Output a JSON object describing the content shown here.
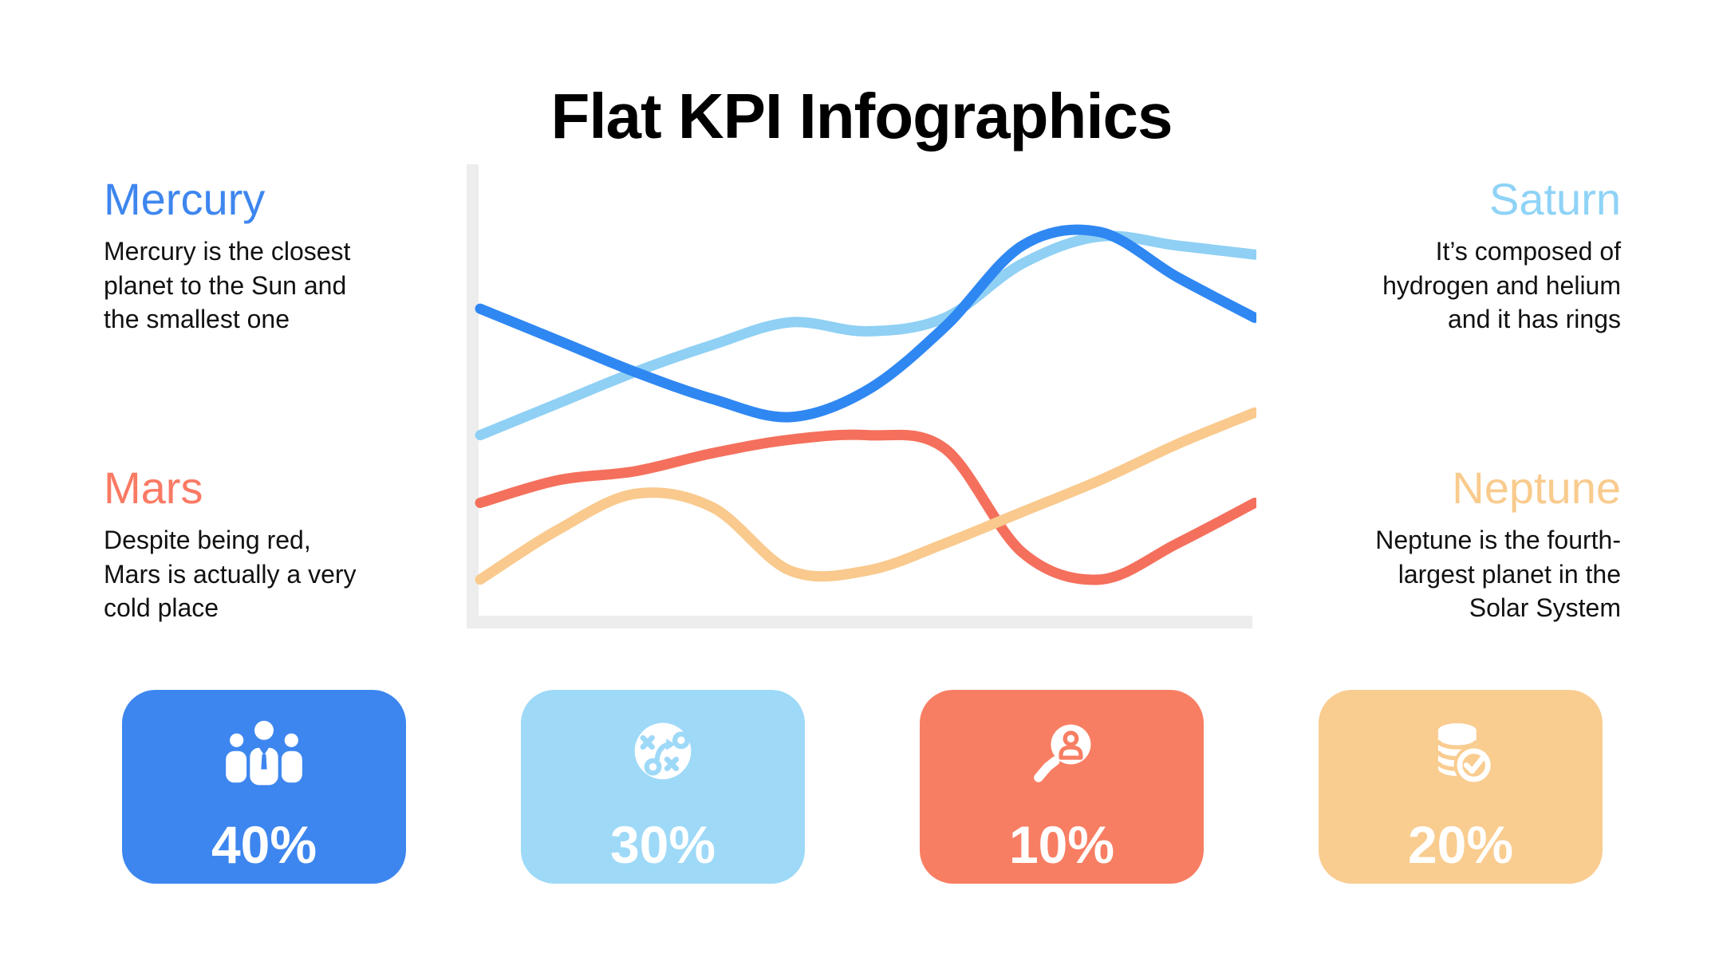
{
  "title": "Flat KPI Infographics",
  "notes": [
    {
      "heading": "Mercury",
      "color": "#3e86ef",
      "body": "Mercury is the closest\nplanet to the Sun and\nthe smallest one"
    },
    {
      "heading": "Mars",
      "color": "#fa7a64",
      "body": "Despite being red,\nMars is actually a very\ncold place"
    },
    {
      "heading": "Saturn",
      "color": "#8fd3f7",
      "body": "It’s composed of\nhydrogen and helium\nand it has rings"
    },
    {
      "heading": "Neptune",
      "color": "#f9cb8d",
      "body": "Neptune is the fourth-\nlargest planet in the\nSolar System"
    }
  ],
  "cards": [
    {
      "value": "40%",
      "color": "#3d86ef",
      "icon": "team-icon"
    },
    {
      "value": "30%",
      "color": "#9ed9f8",
      "icon": "strategy-icon"
    },
    {
      "value": "10%",
      "color": "#f87e63",
      "icon": "candidate-search-icon"
    },
    {
      "value": "20%",
      "color": "#f9cc90",
      "icon": "database-check-icon"
    }
  ],
  "chart_data": {
    "type": "line",
    "title": "",
    "xlabel": "",
    "ylabel": "",
    "x": [
      0,
      1,
      2,
      3,
      4,
      5,
      6,
      7,
      8,
      9,
      10
    ],
    "series": [
      {
        "name": "Mercury",
        "color": "#2f87f2",
        "values": [
          68,
          61,
          54,
          48,
          44,
          50,
          64,
          82,
          85,
          75,
          66
        ]
      },
      {
        "name": "Saturn",
        "color": "#8fd0f4",
        "values": [
          40,
          47,
          54,
          60,
          65,
          63,
          66,
          78,
          84,
          82,
          80
        ]
      },
      {
        "name": "Mars",
        "color": "#f4705c",
        "values": [
          25,
          30,
          32,
          36,
          39,
          40,
          37,
          14,
          8,
          16,
          25
        ]
      },
      {
        "name": "Neptune",
        "color": "#f9c98d",
        "values": [
          8,
          19,
          27,
          24,
          10,
          10,
          16,
          23,
          30,
          38,
          45
        ]
      }
    ],
    "ylim": [
      0,
      100
    ],
    "grid": false,
    "legend": "none",
    "line_width": 13,
    "axis_color": "#ededed"
  }
}
